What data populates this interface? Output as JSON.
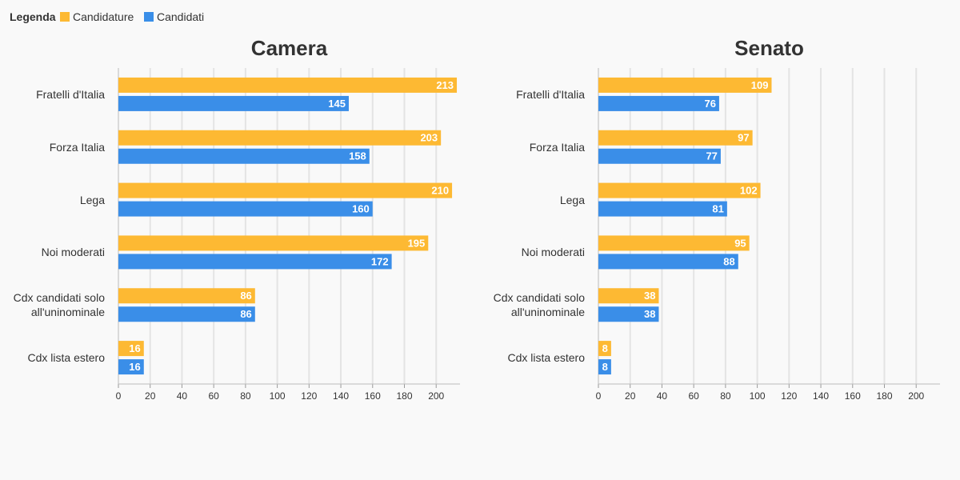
{
  "legend_title": "Legenda",
  "chart_data": [
    {
      "type": "bar",
      "orientation": "horizontal",
      "title": "Camera",
      "categories": [
        "Fratelli d'Italia",
        "Forza Italia",
        "Lega",
        "Noi moderati",
        "Cdx candidati solo all'uninominale",
        "Cdx lista estero"
      ],
      "series": [
        {
          "name": "Candidature",
          "color": "#fdb933",
          "values": [
            213,
            203,
            210,
            195,
            86,
            16
          ]
        },
        {
          "name": "Candidati",
          "color": "#3a8ee8",
          "values": [
            145,
            158,
            160,
            172,
            86,
            16
          ]
        }
      ],
      "xlim": [
        0,
        215
      ],
      "xticks": [
        0,
        20,
        40,
        60,
        80,
        100,
        120,
        140,
        160,
        180,
        200
      ],
      "grid": true
    },
    {
      "type": "bar",
      "orientation": "horizontal",
      "title": "Senato",
      "categories": [
        "Fratelli d'Italia",
        "Forza Italia",
        "Lega",
        "Noi moderati",
        "Cdx candidati solo all'uninominale",
        "Cdx lista estero"
      ],
      "series": [
        {
          "name": "Candidature",
          "color": "#fdb933",
          "values": [
            109,
            97,
            102,
            95,
            38,
            8
          ]
        },
        {
          "name": "Candidati",
          "color": "#3a8ee8",
          "values": [
            76,
            77,
            81,
            88,
            38,
            8
          ]
        }
      ],
      "xlim": [
        0,
        215
      ],
      "xticks": [
        0,
        20,
        40,
        60,
        80,
        100,
        120,
        140,
        160,
        180,
        200
      ],
      "grid": true
    }
  ]
}
